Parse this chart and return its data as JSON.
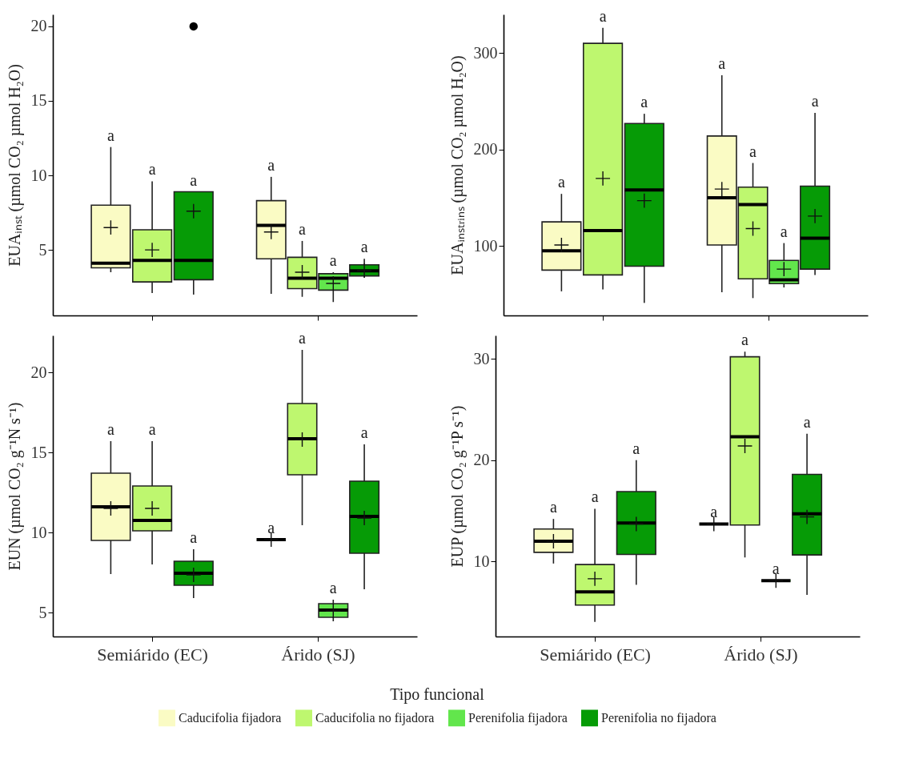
{
  "chart_data": [
    {
      "type": "box",
      "ylabel": "EUAᵢₙₛₜ (µmol CO₂ µmol H₂O)",
      "categories": [
        "Semiárido (EC)",
        "Árido (SJ)"
      ],
      "ylim": [
        0.6,
        20.8
      ],
      "yticks": [
        5,
        10,
        15,
        20
      ],
      "tick_labels": "y",
      "legend": "bottom",
      "marker": "cross",
      "series": [
        {
          "name": "Caducifolia fijadora",
          "color": "#fafbc4",
          "boxes": [
            {
              "low": 3.5,
              "q1": 3.8,
              "median": 4.1,
              "q3": 8.0,
              "high": 11.9,
              "mean": 6.5
            },
            {
              "low": 2.05,
              "q1": 4.4,
              "median": 6.65,
              "q3": 8.3,
              "high": 9.9,
              "mean": 6.2
            }
          ]
        },
        {
          "name": "Caducifolia no fijadora",
          "color": "#bef76f",
          "boxes": [
            {
              "low": 2.1,
              "q1": 2.85,
              "median": 4.3,
              "q3": 6.35,
              "high": 9.6,
              "mean": 5.0
            },
            {
              "low": 1.85,
              "q1": 2.4,
              "median": 3.1,
              "q3": 4.5,
              "high": 5.6,
              "mean": 3.5
            }
          ]
        },
        {
          "name": "Perenifolia fijadora",
          "color": "#62e64c",
          "boxes": [
            null,
            {
              "low": 1.5,
              "q1": 2.3,
              "median": 3.1,
              "q3": 3.4,
              "high": 3.5,
              "mean": 2.75
            }
          ]
        },
        {
          "name": "Perenifolia no fijadora",
          "color": "#069b06",
          "boxes": [
            {
              "low": 2.0,
              "q1": 3.0,
              "median": 4.3,
              "q3": 8.9,
              "high": 8.9,
              "mean": 7.6,
              "outliers": [
                20
              ]
            },
            {
              "low": 3.15,
              "q1": 3.25,
              "median": 3.6,
              "q3": 4.0,
              "high": 4.4,
              "mean": 3.6
            }
          ]
        }
      ],
      "annotations": [
        "a",
        "a",
        "a",
        "a",
        "a",
        "a",
        "a"
      ]
    },
    {
      "type": "box",
      "ylabel": "EUAᵢₙₛₜᵣᵢₙₛ (µmol CO₂ µmol H₂O)",
      "categories": [
        "Semiárido (EC)",
        "Árido (SJ)"
      ],
      "ylim": [
        28,
        340
      ],
      "yticks": [
        100,
        200,
        300
      ],
      "tick_labels": "y",
      "legend": "bottom",
      "marker": "cross",
      "series": [
        {
          "name": "Caducifolia fijadora",
          "color": "#fafbc4",
          "boxes": [
            {
              "low": 53,
              "q1": 75,
              "median": 95,
              "q3": 125,
              "high": 154,
              "mean": 101
            },
            {
              "low": 52,
              "q1": 101,
              "median": 150,
              "q3": 214,
              "high": 277,
              "mean": 159
            }
          ]
        },
        {
          "name": "Caducifolia no fijadora",
          "color": "#bef76f",
          "boxes": [
            {
              "low": 55,
              "q1": 70,
              "median": 116,
              "q3": 310,
              "high": 326,
              "mean": 170
            },
            {
              "low": 46,
              "q1": 66,
              "median": 143,
              "q3": 161,
              "high": 186,
              "mean": 118
            }
          ]
        },
        {
          "name": "Perenifolia fijadora",
          "color": "#62e64c",
          "boxes": [
            null,
            {
              "low": 57,
              "q1": 61,
              "median": 65,
              "q3": 85,
              "high": 103,
              "mean": 76
            }
          ]
        },
        {
          "name": "Perenifolia no fijadora",
          "color": "#069b06",
          "boxes": [
            {
              "low": 41,
              "q1": 79,
              "median": 158,
              "q3": 227,
              "high": 237,
              "mean": 147
            },
            {
              "low": 70,
              "q1": 76,
              "median": 108,
              "q3": 162,
              "high": 238,
              "mean": 131
            }
          ]
        }
      ],
      "annotations": [
        "a",
        "a",
        "a",
        "a",
        "a",
        "a",
        "a"
      ]
    },
    {
      "type": "box",
      "ylabel": "EUN (µmol CO₂ g⁻¹N s⁻¹)",
      "categories": [
        "Semiárido (EC)",
        "Árido (SJ)"
      ],
      "ylim": [
        3.5,
        22.3
      ],
      "yticks": [
        5,
        10,
        15,
        20
      ],
      "legend": "bottom",
      "marker": "cross",
      "series": [
        {
          "name": "Caducifolia fijadora",
          "color": "#fafbc4",
          "boxes": [
            {
              "low": 7.4,
              "q1": 9.5,
              "median": 11.6,
              "q3": 13.7,
              "high": 15.7,
              "mean": 11.5
            },
            {
              "low": 9.55,
              "q1": 9.55,
              "median": 9.55,
              "q3": 9.55,
              "high": 9.55,
              "mean": 9.55
            }
          ]
        },
        {
          "name": "Caducifolia no fijadora",
          "color": "#bef76f",
          "boxes": [
            {
              "low": 8.0,
              "q1": 10.1,
              "median": 10.75,
              "q3": 12.9,
              "high": 15.7,
              "mean": 11.5
            },
            {
              "low": 10.45,
              "q1": 13.6,
              "median": 15.85,
              "q3": 18.05,
              "high": 21.4,
              "mean": 15.8
            }
          ]
        },
        {
          "name": "Perenifolia fijadora",
          "color": "#62e64c",
          "boxes": [
            null,
            {
              "low": 4.45,
              "q1": 4.7,
              "median": 5.15,
              "q3": 5.55,
              "high": 5.8,
              "mean": 5.1
            }
          ]
        },
        {
          "name": "Perenifolia no fijadora",
          "color": "#069b06",
          "boxes": [
            {
              "low": 5.9,
              "q1": 6.7,
              "median": 7.45,
              "q3": 8.2,
              "high": 8.95,
              "mean": 7.35
            },
            {
              "low": 6.45,
              "q1": 8.7,
              "median": 11.0,
              "q3": 13.2,
              "high": 15.5,
              "mean": 10.9
            }
          ]
        }
      ],
      "annotations": [
        "a",
        "a",
        "a",
        "a",
        "a",
        "a",
        "a"
      ]
    },
    {
      "type": "box",
      "ylabel": "EUP (µmol CO₂ g⁻¹P s⁻¹)",
      "categories": [
        "Semiárido (EC)",
        "Árido (SJ)"
      ],
      "ylim": [
        2.6,
        32.3
      ],
      "yticks": [
        10,
        20,
        30
      ],
      "legend": "bottom",
      "legend_title": "Tipo funcional",
      "marker": "cross",
      "series": [
        {
          "name": "Caducifolia fijadora",
          "color": "#fafbc4",
          "boxes": [
            {
              "low": 9.8,
              "q1": 10.9,
              "median": 12.0,
              "q3": 13.2,
              "high": 14.2,
              "mean": 12.0
            },
            {
              "low": 13.7,
              "q1": 13.7,
              "median": 13.7,
              "q3": 13.7,
              "high": 13.7,
              "mean": 13.7
            }
          ]
        },
        {
          "name": "Caducifolia no fijadora",
          "color": "#bef76f",
          "boxes": [
            {
              "low": 4.05,
              "q1": 5.7,
              "median": 7.0,
              "q3": 9.7,
              "high": 15.2,
              "mean": 8.3
            },
            {
              "low": 10.4,
              "q1": 13.6,
              "median": 22.3,
              "q3": 30.2,
              "high": 30.7,
              "mean": 21.4
            }
          ]
        },
        {
          "name": "Perenifolia fijadora",
          "color": "#62e64c",
          "boxes": [
            null,
            {
              "low": 8.1,
              "q1": 8.1,
              "median": 8.1,
              "q3": 8.1,
              "high": 8.1,
              "mean": 8.1
            }
          ]
        },
        {
          "name": "Perenifolia no fijadora",
          "color": "#069b06",
          "boxes": [
            {
              "low": 7.7,
              "q1": 10.7,
              "median": 13.8,
              "q3": 16.9,
              "high": 20.0,
              "mean": 13.7
            },
            {
              "low": 6.7,
              "q1": 10.65,
              "median": 14.7,
              "q3": 18.6,
              "high": 22.6,
              "mean": 14.4
            }
          ]
        }
      ],
      "annotations": [
        "a",
        "a",
        "a",
        "a",
        "a",
        "a",
        "a"
      ]
    }
  ]
}
